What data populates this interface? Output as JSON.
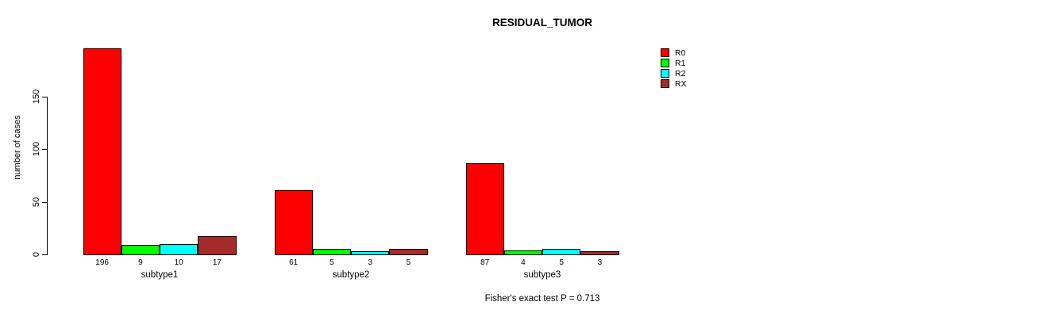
{
  "chart_data": {
    "type": "bar",
    "title": "RESIDUAL_TUMOR",
    "ylabel": "number of cases",
    "xlabel": "",
    "categories": [
      "subtype1",
      "subtype2",
      "subtype3"
    ],
    "series": [
      {
        "name": "R0",
        "color": "#ff0000",
        "values": [
          196,
          61,
          87
        ]
      },
      {
        "name": "R1",
        "color": "#00ff00",
        "values": [
          9,
          5,
          4
        ]
      },
      {
        "name": "R2",
        "color": "#00ffff",
        "values": [
          10,
          3,
          5
        ]
      },
      {
        "name": "RX",
        "color": "#a52a2a",
        "values": [
          17,
          5,
          3
        ]
      }
    ],
    "yticks": [
      0,
      50,
      100,
      150
    ],
    "ylim": [
      0,
      150
    ],
    "bar_value_labels_shown": true,
    "legend_position": "top-right",
    "grid": false,
    "annotation": "Fisher's exact test P = 0.713",
    "colors": {
      "background": "#ffffff",
      "axis": "#000000",
      "text": "#000000"
    }
  }
}
